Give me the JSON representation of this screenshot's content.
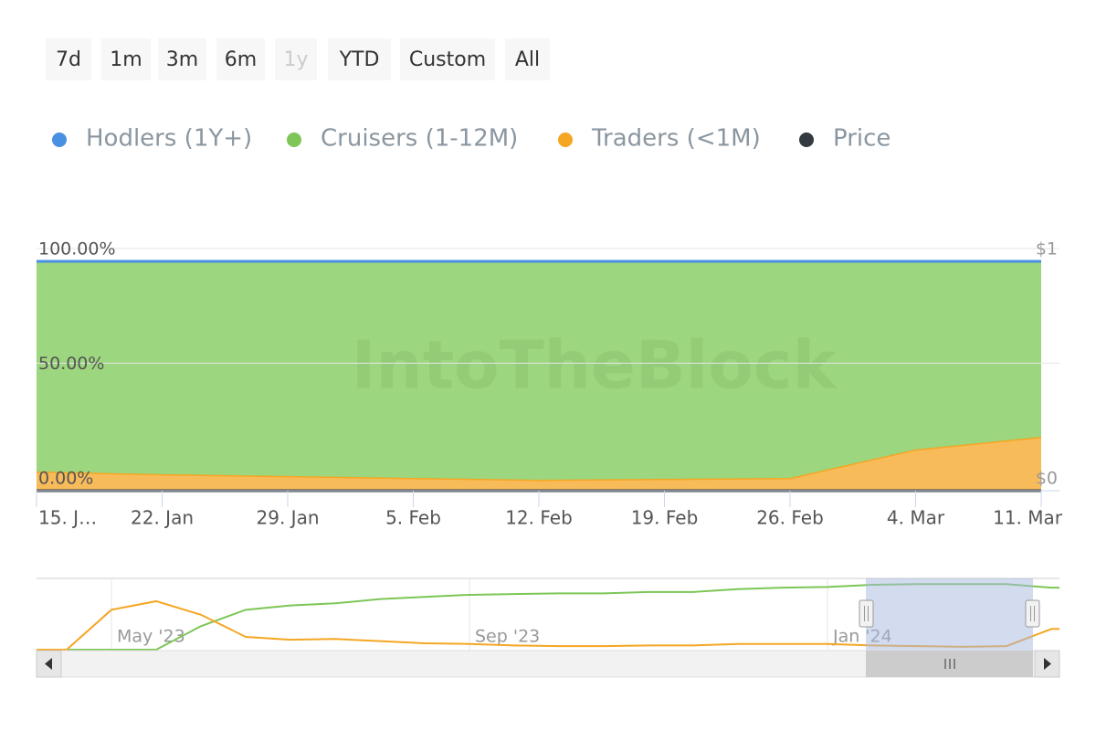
{
  "range_buttons": [
    {
      "label": "7d"
    },
    {
      "label": "1m"
    },
    {
      "label": "3m"
    },
    {
      "label": "6m"
    },
    {
      "label": "1y",
      "disabled": true
    },
    {
      "label": "YTD"
    },
    {
      "label": "Custom"
    },
    {
      "label": "All"
    }
  ],
  "watermark": "IntoTheBlock",
  "chart_data": {
    "type": "area",
    "stacked": true,
    "categories": [
      "15. J…",
      "22. Jan",
      "29. Jan",
      "5. Feb",
      "12. Feb",
      "19. Feb",
      "26. Feb",
      "4. Mar",
      "11. Mar"
    ],
    "series": [
      {
        "name": "Hodlers (1Y+)",
        "color": "#4a90e2",
        "values": [
          0,
          0,
          0,
          0,
          0,
          0,
          0,
          0,
          0
        ]
      },
      {
        "name": "Cruisers (1-12M)",
        "color": "#7dc657",
        "values": [
          91.6,
          92.8,
          93.6,
          94.4,
          95.2,
          94.8,
          94.4,
          82,
          76.5
        ]
      },
      {
        "name": "Traders (<1M)",
        "color": "#f5a623",
        "values": [
          8.4,
          7.2,
          6.4,
          5.6,
          4.8,
          5.2,
          5.6,
          18,
          23.5
        ]
      },
      {
        "name": "Price",
        "color": "#333a40",
        "axis": "y2",
        "values": [
          0,
          0,
          0,
          0,
          0,
          0,
          0,
          0,
          0
        ]
      }
    ],
    "ylim": [
      0,
      100
    ],
    "yticks": [
      {
        "value": 0,
        "label": "0.00%"
      },
      {
        "value": 50,
        "label": "50.00%"
      },
      {
        "value": 100,
        "label": "100.00%"
      }
    ],
    "y2lim": [
      0,
      1
    ],
    "y2ticks": [
      {
        "value": 0,
        "label": "$0"
      },
      {
        "value": 1,
        "label": "$1"
      }
    ],
    "grid": true,
    "navigator": {
      "categories": [
        null,
        null,
        "May '23",
        null,
        null,
        null,
        null,
        null,
        null,
        null,
        "Sep '23",
        null,
        null,
        null,
        null,
        null,
        null,
        null,
        "Jan '24",
        null,
        null,
        null,
        null,
        null,
        null
      ],
      "ylim": [
        0,
        100
      ],
      "series": [
        {
          "name": "Cruisers (1-12M)",
          "color": "#7dc657",
          "values": [
            0,
            0,
            0,
            0,
            33,
            56,
            62,
            65,
            71,
            74,
            77,
            78,
            79,
            79,
            81,
            81,
            85,
            87,
            88,
            91,
            92,
            92,
            92,
            87,
            87
          ]
        },
        {
          "name": "Traders (<1M)",
          "color": "#f5a623",
          "values": [
            0,
            0,
            56,
            68,
            49,
            18,
            14,
            15,
            12,
            9,
            8,
            6,
            5,
            5,
            6,
            6,
            8,
            8,
            8,
            6,
            5,
            4,
            5,
            29,
            30
          ]
        }
      ]
    }
  }
}
